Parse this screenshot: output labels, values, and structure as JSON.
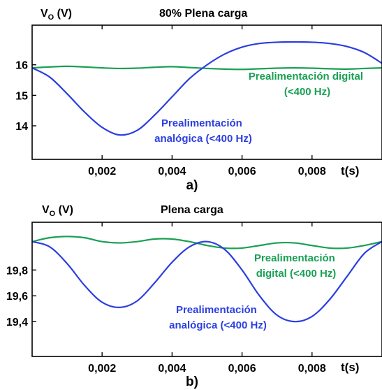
{
  "colors": {
    "analog": "#2b3fe0",
    "digital": "#1aa054",
    "axis": "#000000"
  },
  "chart_data": [
    {
      "type": "line",
      "panel_label": "a)",
      "title": "80% Plena carga",
      "ylabel_main": "V",
      "ylabel_sub": "O",
      "ylabel_unit": " (V)",
      "xlabel": "t(s)",
      "xlim": [
        0,
        0.01
      ],
      "ylim": [
        12.9,
        17.3
      ],
      "x_ticks": [
        0.002,
        0.004,
        0.006,
        0.008
      ],
      "x_tick_labels": [
        "0,002",
        "0,004",
        "0,006",
        "0,008"
      ],
      "y_ticks": [
        14,
        15,
        16
      ],
      "y_tick_labels": [
        "14",
        "15",
        "16"
      ],
      "series": [
        {
          "name": "Prealimentación analógica (<400 Hz)",
          "label_lines": [
            "Prealimentación",
            "analógica (<400 Hz)"
          ],
          "color_key": "analog",
          "x": [
            0,
            0.0005,
            0.001,
            0.0015,
            0.002,
            0.0025,
            0.003,
            0.0035,
            0.004,
            0.0045,
            0.005,
            0.0055,
            0.006,
            0.0065,
            0.007,
            0.0075,
            0.008,
            0.0085,
            0.009,
            0.0095,
            0.01
          ],
          "values": [
            15.9,
            15.6,
            15.05,
            14.45,
            13.95,
            13.7,
            13.85,
            14.35,
            14.95,
            15.55,
            16.0,
            16.35,
            16.58,
            16.7,
            16.74,
            16.75,
            16.74,
            16.7,
            16.6,
            16.4,
            16.05
          ]
        },
        {
          "name": "Prealimentación digital (<400 Hz)",
          "label_lines": [
            "Prealimentación digital",
            "(<400 Hz)"
          ],
          "color_key": "digital",
          "x": [
            0,
            0.0005,
            0.001,
            0.0015,
            0.002,
            0.0025,
            0.003,
            0.0035,
            0.004,
            0.0045,
            0.005,
            0.0055,
            0.006,
            0.0065,
            0.007,
            0.0075,
            0.008,
            0.0085,
            0.009,
            0.0095,
            0.01
          ],
          "values": [
            15.9,
            15.93,
            15.95,
            15.93,
            15.9,
            15.88,
            15.89,
            15.92,
            15.94,
            15.91,
            15.88,
            15.86,
            15.85,
            15.87,
            15.89,
            15.9,
            15.89,
            15.87,
            15.86,
            15.88,
            15.9
          ]
        }
      ]
    },
    {
      "type": "line",
      "panel_label": "b)",
      "title": "Plena carga",
      "ylabel_main": "V",
      "ylabel_sub": "O",
      "ylabel_unit": " (V)",
      "xlabel": "t(s)",
      "xlim": [
        0,
        0.01
      ],
      "ylim": [
        19.13,
        20.17
      ],
      "x_ticks": [
        0.002,
        0.004,
        0.006,
        0.008
      ],
      "x_tick_labels": [
        "0,002",
        "0,004",
        "0,006",
        "0,008"
      ],
      "y_ticks": [
        19.4,
        19.6,
        19.8
      ],
      "y_tick_labels": [
        "19,4",
        "19,6",
        "19,8"
      ],
      "series": [
        {
          "name": "Prealimentación analógica (<400 Hz)",
          "label_lines": [
            "Prealimentación",
            "analógica (<400 Hz)"
          ],
          "color_key": "analog",
          "x": [
            0,
            0.0005,
            0.001,
            0.0015,
            0.002,
            0.0025,
            0.003,
            0.0035,
            0.004,
            0.0045,
            0.005,
            0.0055,
            0.006,
            0.0065,
            0.007,
            0.0075,
            0.008,
            0.0085,
            0.009,
            0.0095,
            0.01
          ],
          "values": [
            20.02,
            19.98,
            19.85,
            19.68,
            19.55,
            19.51,
            19.56,
            19.7,
            19.86,
            19.98,
            20.02,
            19.96,
            19.8,
            19.6,
            19.45,
            19.4,
            19.44,
            19.57,
            19.75,
            19.93,
            20.02
          ]
        },
        {
          "name": "Prealimentación digital (<400 Hz)",
          "label_lines": [
            "Prealimentación",
            "digital (<400 Hz)"
          ],
          "color_key": "digital",
          "x": [
            0,
            0.0005,
            0.001,
            0.0015,
            0.002,
            0.0025,
            0.003,
            0.0035,
            0.004,
            0.0045,
            0.005,
            0.0055,
            0.006,
            0.0065,
            0.007,
            0.0075,
            0.008,
            0.0085,
            0.009,
            0.0095,
            0.01
          ],
          "values": [
            20.02,
            20.05,
            20.06,
            20.05,
            20.02,
            20.01,
            20.02,
            20.04,
            20.04,
            20.02,
            19.99,
            19.97,
            19.97,
            19.99,
            20.01,
            20.01,
            19.99,
            19.97,
            19.97,
            19.99,
            20.02
          ]
        }
      ]
    }
  ]
}
